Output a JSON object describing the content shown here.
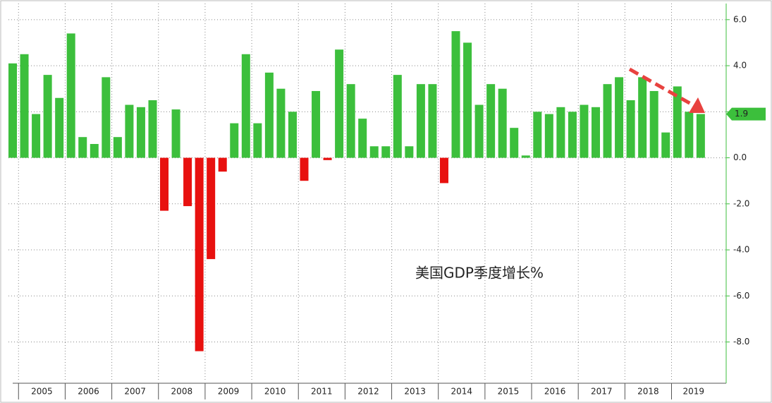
{
  "chart_data": {
    "type": "bar",
    "annotation": "美国GDP季度增长%",
    "years": [
      "2005",
      "2006",
      "2007",
      "2008",
      "2009",
      "2010",
      "2011",
      "2012",
      "2013",
      "2014",
      "2015",
      "2016",
      "2017",
      "2018",
      "2019"
    ],
    "values": [
      4.1,
      4.5,
      1.9,
      3.6,
      2.6,
      5.4,
      0.9,
      0.6,
      3.5,
      0.9,
      2.3,
      2.2,
      2.5,
      -2.3,
      2.1,
      -2.1,
      -8.4,
      -4.4,
      -0.6,
      1.5,
      4.5,
      1.5,
      3.7,
      3.0,
      2.0,
      -1.0,
      2.9,
      -0.1,
      4.7,
      3.2,
      1.7,
      0.5,
      0.5,
      3.6,
      0.5,
      3.2,
      3.2,
      -1.1,
      5.5,
      5.0,
      2.3,
      3.2,
      3.0,
      1.3,
      0.1,
      2.0,
      1.9,
      2.2,
      2.0,
      2.3,
      2.2,
      3.2,
      3.5,
      2.5,
      3.5,
      2.9,
      1.1,
      3.1,
      2.0,
      1.9
    ],
    "last_value_label": "1.9",
    "positive_color": "#3cbf3c",
    "negative_color": "#e8110f",
    "ylim": [
      -9.7,
      6.7
    ],
    "yticks": [
      {
        "value": 6,
        "label": "6.0"
      },
      {
        "value": 4,
        "label": "4.0"
      },
      {
        "value": 2,
        "label": "2.0"
      },
      {
        "value": 0,
        "label": "0.0"
      },
      {
        "value": -2,
        "label": "-2.0"
      },
      {
        "value": -4,
        "label": "-4.0"
      },
      {
        "value": -6,
        "label": "-6.0"
      },
      {
        "value": -8,
        "label": "-8.0"
      }
    ],
    "grid": true
  }
}
